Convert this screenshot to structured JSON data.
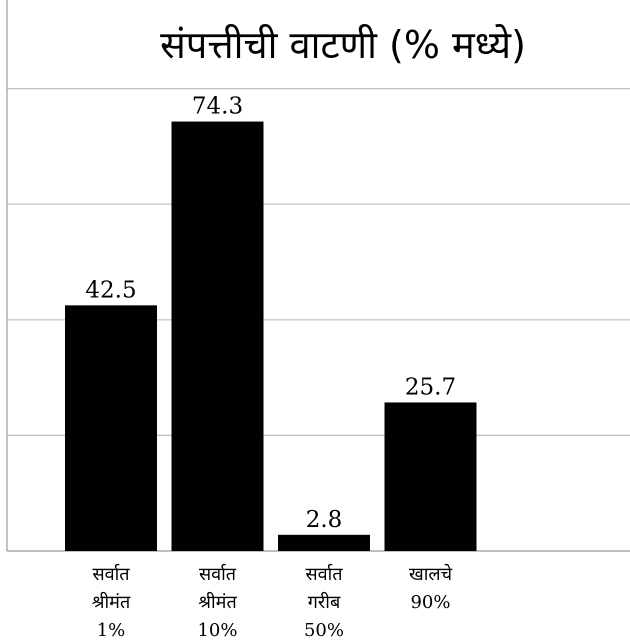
{
  "chart_data": {
    "type": "bar",
    "title": "संपत्तीची वाटणी (% मध्ये)",
    "categories": [
      [
        "सर्वात",
        "श्रीमंत",
        "1%"
      ],
      [
        "सर्वात",
        "श्रीमंत",
        "10%"
      ],
      [
        "सर्वात",
        "गरीब",
        "50%"
      ],
      [
        "खालचे",
        "90%"
      ]
    ],
    "values": [
      42.5,
      74.3,
      2.8,
      25.7
    ],
    "value_labels": [
      "42.5",
      "74.3",
      "2.8",
      "25.7"
    ],
    "ylim": [
      0,
      100
    ],
    "y_gridlines": [
      20,
      40,
      60,
      80
    ],
    "grid": true,
    "bar_color": "#000000",
    "grid_color": "#bfbfbf",
    "axis_color": "#999999",
    "legend": "none"
  }
}
